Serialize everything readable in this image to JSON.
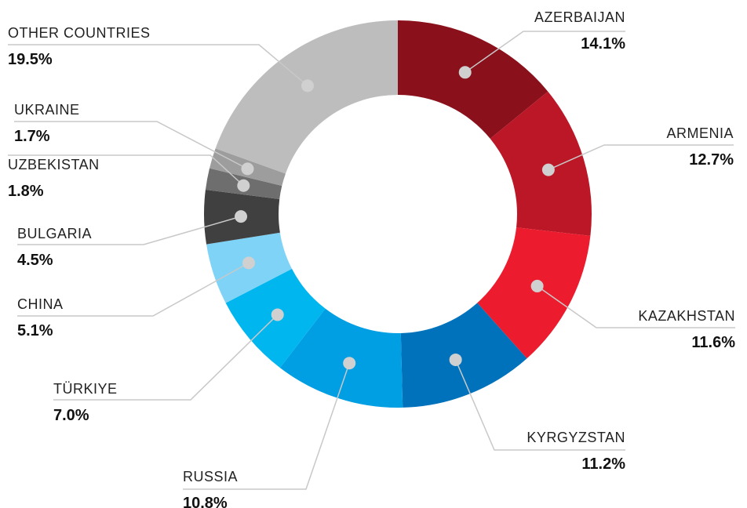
{
  "chart_data": {
    "type": "donut",
    "categories": [
      "AZERBAIJAN",
      "ARMENIA",
      "KAZAKHSTAN",
      "KYRGYZSTAN",
      "RUSSIA",
      "TÜRKIYE",
      "CHINA",
      "BULGARIA",
      "UZBEKISTAN",
      "UKRAINE",
      "OTHER COUNTRIES"
    ],
    "values": [
      14.1,
      12.7,
      11.6,
      11.2,
      10.8,
      7.0,
      5.1,
      4.5,
      1.8,
      1.7,
      19.5
    ],
    "value_labels": [
      "14.1%",
      "12.7%",
      "11.6%",
      "11.2%",
      "10.8%",
      "7.0%",
      "5.1%",
      "4.5%",
      "1.8%",
      "1.7%",
      "19.5%"
    ],
    "colors": [
      "#8a111c",
      "#bc1727",
      "#ec1c2e",
      "#0072bc",
      "#009fe3",
      "#00b6ef",
      "#7fd3f7",
      "#404040",
      "#6e6e6e",
      "#9d9d9d",
      "#bdbdbd"
    ]
  }
}
